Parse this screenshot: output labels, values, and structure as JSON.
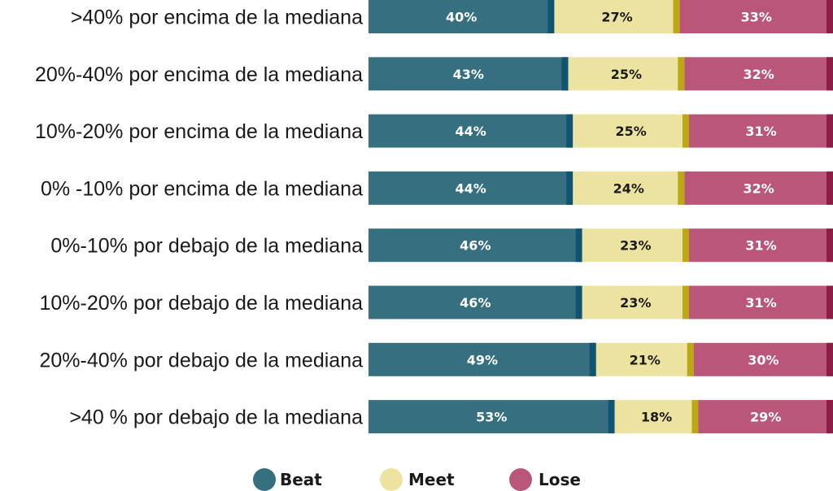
{
  "chart_data": {
    "type": "bar",
    "orientation": "horizontal",
    "stacked": true,
    "normalized": true,
    "categories": [
      ">40% por encima de la mediana",
      "20%-40% por encima de la mediana",
      "10%-20% por encima de la mediana",
      "0% -10% por encima de la mediana",
      "0%-10% por debajo de la mediana",
      "10%-20% por debajo de la mediana",
      "20%-40% por debajo de la mediana",
      ">40 % por debajo de la mediana"
    ],
    "series": [
      {
        "name": "Beat",
        "color": "#356f80",
        "edge_color": "#0f5470",
        "values": [
          40,
          43,
          44,
          44,
          46,
          46,
          49,
          53
        ],
        "labels": [
          "40%",
          "43%",
          "44%",
          "44%",
          "46%",
          "46%",
          "49%",
          "53%"
        ]
      },
      {
        "name": "Meet",
        "color": "#ede3a0",
        "edge_color": "#bba813",
        "values": [
          27,
          25,
          25,
          24,
          23,
          23,
          21,
          18
        ],
        "labels": [
          "27%",
          "25%",
          "25%",
          "24%",
          "23%",
          "23%",
          "21%",
          "18%"
        ]
      },
      {
        "name": "Lose",
        "color": "#b9567a",
        "edge_color": "#8b1d48",
        "values": [
          33,
          32,
          31,
          32,
          31,
          31,
          30,
          29
        ],
        "labels": [
          "33%",
          "32%",
          "31%",
          "32%",
          "31%",
          "31%",
          "30%",
          "29%"
        ]
      }
    ],
    "xlim": [
      0,
      100
    ],
    "grid": false,
    "legend_position": "bottom-center",
    "label_colors": {
      "on_dark": "#ffffff",
      "on_light": "#1a1a1a"
    }
  }
}
